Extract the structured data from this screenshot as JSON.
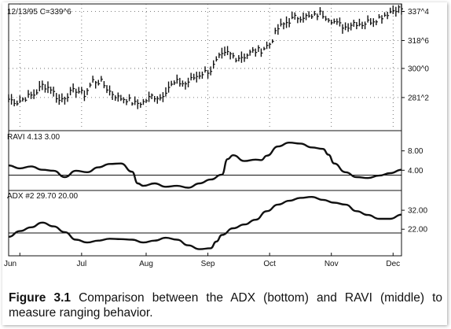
{
  "caption": {
    "label": "Figure 3.1",
    "text": "Comparison between the ADX (bottom) and RAVI (middle) to measure ranging behavior."
  },
  "colors": {
    "line": "#111111",
    "grid": "#555555",
    "background": "#ffffff"
  },
  "chart_data": [
    {
      "type": "line",
      "panel": "price",
      "header": "12/13/95 C=339^6",
      "style": "bar (OHLC)",
      "y_tick_labels": [
        "337^4",
        "318^6",
        "300^0",
        "281^2"
      ],
      "y_ticks": [
        337.125,
        318.1875,
        300.0,
        281.0625
      ],
      "ylim": [
        260,
        342
      ],
      "x_month_labels": [
        "Jun",
        "Jul",
        "Aug",
        "Sep",
        "Oct",
        "Nov",
        "Dec"
      ],
      "x_label_positions": [
        0,
        22,
        45,
        67,
        89,
        111,
        133
      ],
      "xlim": [
        0,
        140
      ],
      "grid": "dotted",
      "series": [
        {
          "x": [
            0,
            3,
            6,
            9,
            12,
            15,
            18,
            21,
            24,
            27,
            30,
            33,
            36,
            39,
            42,
            45,
            48,
            51,
            54,
            57,
            60,
            63,
            66,
            69,
            72,
            75,
            78,
            81,
            84,
            87,
            90,
            93,
            96,
            99,
            102,
            105,
            108,
            111,
            114,
            117,
            120,
            123,
            126,
            129,
            132,
            135,
            138
          ],
          "values": [
            280,
            278,
            281,
            283,
            289,
            287,
            279,
            283,
            286,
            283,
            292,
            291,
            285,
            281,
            280,
            277,
            278,
            282,
            281,
            288,
            291,
            290,
            294,
            297,
            299,
            307,
            310,
            307,
            308,
            311,
            312,
            316,
            326,
            330,
            333,
            334,
            333,
            336,
            333,
            329,
            327,
            330,
            329,
            331,
            333,
            336,
            339
          ]
        }
      ]
    },
    {
      "type": "line",
      "panel": "ravi",
      "header": "RAVI 4.13 3.00",
      "y_tick_labels": [
        "8.00",
        "4.00"
      ],
      "y_ticks": [
        8,
        4
      ],
      "ylim": [
        0,
        12
      ],
      "reference_line": 3.0,
      "xlim": [
        0,
        140
      ],
      "series": [
        {
          "x": [
            0,
            4,
            8,
            12,
            16,
            20,
            24,
            28,
            32,
            36,
            40,
            44,
            46,
            48,
            52,
            56,
            60,
            64,
            68,
            72,
            76,
            78,
            80,
            84,
            88,
            90,
            92,
            96,
            100,
            104,
            108,
            112,
            114,
            116,
            120,
            124,
            128,
            132,
            136,
            140
          ],
          "values": [
            5.0,
            4.4,
            4.8,
            4.1,
            3.9,
            2.6,
            3.9,
            3.6,
            4.6,
            5.3,
            5.4,
            3.7,
            1.3,
            0.8,
            1.3,
            0.6,
            0.8,
            0.4,
            1.3,
            2.1,
            3.1,
            6.3,
            7.1,
            5.9,
            6.2,
            6.1,
            7.0,
            8.9,
            9.7,
            9.5,
            8.7,
            8.4,
            7.2,
            5.4,
            3.6,
            2.6,
            2.4,
            2.9,
            3.4,
            4.1
          ]
        }
      ]
    },
    {
      "type": "line",
      "panel": "adx",
      "header": "ADX #2 29.70 20.00",
      "y_tick_labels": [
        "32.00",
        "22.00"
      ],
      "y_ticks": [
        32,
        22
      ],
      "ylim": [
        8,
        42
      ],
      "reference_line": 20.0,
      "xlim": [
        0,
        140
      ],
      "x_month_labels": [
        "Jun",
        "Jul",
        "Aug",
        "Sep",
        "Oct",
        "Nov",
        "Dec"
      ],
      "series": [
        {
          "x": [
            0,
            4,
            8,
            12,
            16,
            20,
            24,
            28,
            32,
            36,
            40,
            44,
            48,
            52,
            56,
            60,
            64,
            68,
            72,
            74,
            76,
            80,
            84,
            88,
            92,
            96,
            100,
            104,
            108,
            112,
            116,
            120,
            124,
            128,
            132,
            136,
            140
          ],
          "values": [
            18.0,
            21.0,
            23.0,
            25.5,
            23.5,
            20.5,
            16.5,
            15.0,
            16.0,
            17.0,
            16.8,
            16.5,
            15.0,
            16.0,
            17.5,
            16.5,
            13.5,
            11.5,
            12.0,
            15.5,
            19.0,
            22.5,
            24.5,
            27.0,
            31.5,
            35.0,
            37.0,
            38.5,
            39.0,
            37.5,
            36.0,
            35.0,
            31.5,
            29.5,
            27.5,
            27.5,
            29.7
          ]
        }
      ]
    }
  ]
}
